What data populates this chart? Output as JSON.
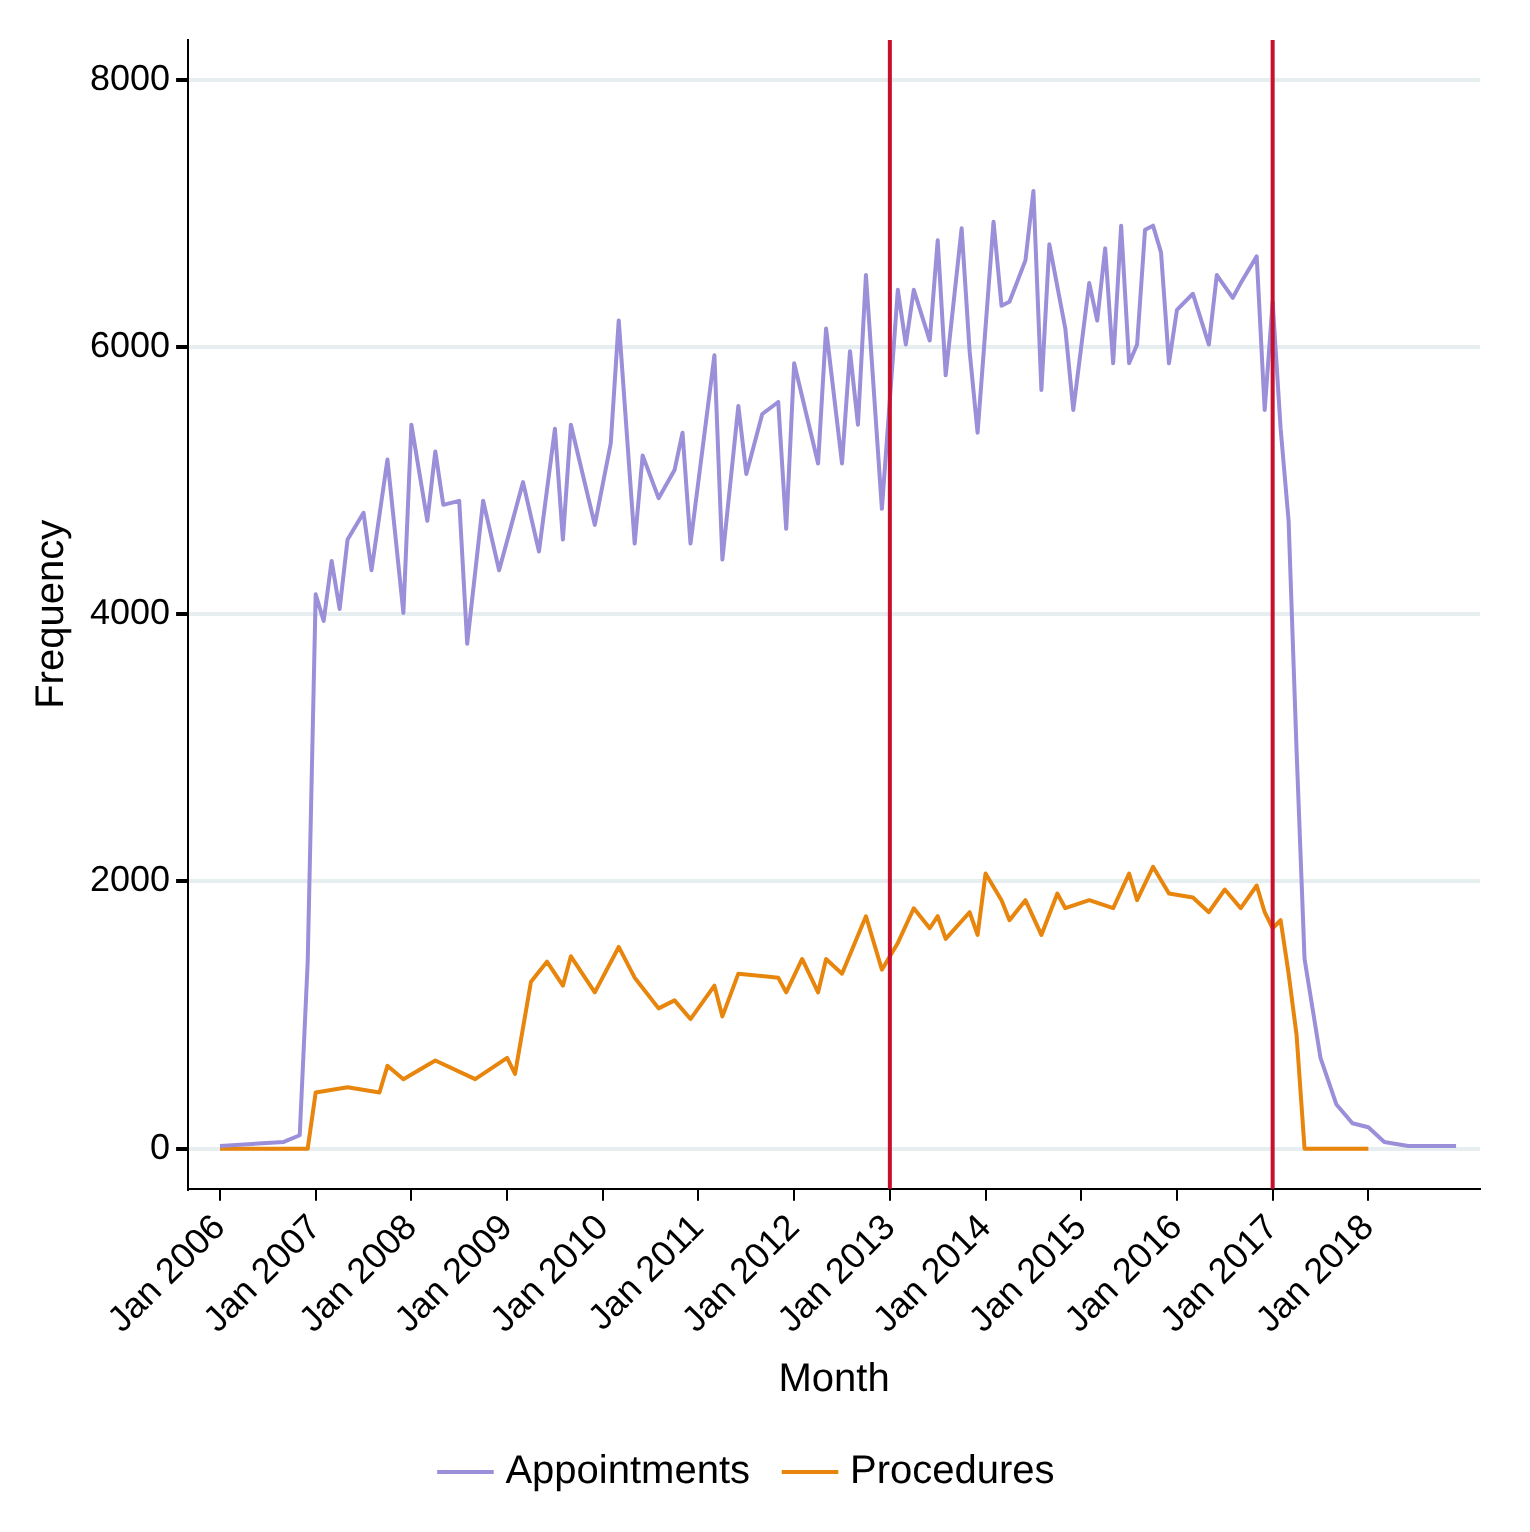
{
  "chart_data": {
    "type": "line",
    "xlabel": "Month",
    "ylabel": "Frequency",
    "xlim": [
      "2005-09",
      "2019-03"
    ],
    "ylim": [
      -300,
      8300
    ],
    "xticks": [
      {
        "value": "2006-01",
        "label": "Jan 2006"
      },
      {
        "value": "2007-01",
        "label": "Jan 2007"
      },
      {
        "value": "2008-01",
        "label": "Jan 2008"
      },
      {
        "value": "2009-01",
        "label": "Jan 2009"
      },
      {
        "value": "2010-01",
        "label": "Jan 2010"
      },
      {
        "value": "2011-01",
        "label": "Jan 2011"
      },
      {
        "value": "2012-01",
        "label": "Jan 2012"
      },
      {
        "value": "2013-01",
        "label": "Jan 2013"
      },
      {
        "value": "2014-01",
        "label": "Jan 2014"
      },
      {
        "value": "2015-01",
        "label": "Jan 2015"
      },
      {
        "value": "2016-01",
        "label": "Jan 2016"
      },
      {
        "value": "2017-01",
        "label": "Jan 2017"
      },
      {
        "value": "2018-01",
        "label": "Jan 2018"
      }
    ],
    "yticks": [
      0,
      2000,
      4000,
      6000,
      8000
    ],
    "grid": "y",
    "legend": "bottom",
    "marker": "none",
    "line_style": "solid",
    "ref_lines": [
      {
        "axis": "x",
        "value": "2013-01",
        "color": "#c8102e"
      },
      {
        "axis": "x",
        "value": "2017-01",
        "color": "#c8102e"
      }
    ],
    "series": [
      {
        "name": "Appointments",
        "color": "#9a8fd8",
        "x": [
          "2006-01",
          "2006-09",
          "2006-11",
          "2006-12",
          "2007-01",
          "2007-02",
          "2007-03",
          "2007-04",
          "2007-05",
          "2007-07",
          "2007-08",
          "2007-10",
          "2007-12",
          "2008-01",
          "2008-03",
          "2008-04",
          "2008-05",
          "2008-07",
          "2008-08",
          "2008-10",
          "2008-12",
          "2009-03",
          "2009-05",
          "2009-07",
          "2009-08",
          "2009-09",
          "2009-12",
          "2010-02",
          "2010-03",
          "2010-05",
          "2010-06",
          "2010-08",
          "2010-10",
          "2010-11",
          "2010-12",
          "2011-03",
          "2011-04",
          "2011-06",
          "2011-07",
          "2011-09",
          "2011-11",
          "2011-12",
          "2012-01",
          "2012-04",
          "2012-05",
          "2012-07",
          "2012-08",
          "2012-09",
          "2012-10",
          "2012-12",
          "2013-02",
          "2013-03",
          "2013-04",
          "2013-06",
          "2013-07",
          "2013-08",
          "2013-10",
          "2013-11",
          "2013-12",
          "2014-02",
          "2014-03",
          "2014-04",
          "2014-06",
          "2014-07",
          "2014-08",
          "2014-09",
          "2014-11",
          "2014-12",
          "2015-02",
          "2015-03",
          "2015-04",
          "2015-05",
          "2015-06",
          "2015-07",
          "2015-08",
          "2015-09",
          "2015-10",
          "2015-11",
          "2015-12",
          "2016-01",
          "2016-03",
          "2016-05",
          "2016-06",
          "2016-08",
          "2016-09",
          "2016-11",
          "2016-12",
          "2017-01",
          "2017-02",
          "2017-03",
          "2017-04",
          "2017-05",
          "2017-07",
          "2017-09",
          "2017-11",
          "2018-01",
          "2018-03",
          "2018-06",
          "2018-12"
        ],
        "values": [
          20,
          50,
          100,
          1400,
          4150,
          3950,
          4400,
          4040,
          4560,
          4760,
          4330,
          5160,
          4010,
          5420,
          4700,
          5220,
          4820,
          4850,
          3780,
          4850,
          4330,
          4990,
          4470,
          5390,
          4560,
          5420,
          4670,
          5280,
          6200,
          4530,
          5190,
          4870,
          5080,
          5360,
          4530,
          5940,
          4410,
          5560,
          5050,
          5500,
          5590,
          4640,
          5880,
          5130,
          6140,
          5130,
          5970,
          5420,
          6540,
          4790,
          6430,
          6020,
          6430,
          6050,
          6800,
          5790,
          6890,
          5970,
          5360,
          6940,
          6310,
          6340,
          6650,
          7170,
          5680,
          6770,
          6140,
          5530,
          6480,
          6200,
          6740,
          5880,
          6910,
          5880,
          6020,
          6880,
          6910,
          6710,
          5880,
          6280,
          6400,
          6020,
          6540,
          6370,
          6480,
          6680,
          5530,
          6340,
          5390,
          4700,
          2980,
          1420,
          680,
          330,
          190,
          160,
          50,
          20,
          20
        ]
      },
      {
        "name": "Procedures",
        "color": "#e8850c",
        "x": [
          "2006-01",
          "2006-12",
          "2007-01",
          "2007-05",
          "2007-09",
          "2007-10",
          "2007-12",
          "2008-04",
          "2008-09",
          "2009-01",
          "2009-02",
          "2009-04",
          "2009-06",
          "2009-08",
          "2009-09",
          "2009-12",
          "2010-03",
          "2010-05",
          "2010-08",
          "2010-10",
          "2010-12",
          "2011-03",
          "2011-04",
          "2011-06",
          "2011-11",
          "2011-12",
          "2012-02",
          "2012-04",
          "2012-05",
          "2012-07",
          "2012-10",
          "2012-12",
          "2013-02",
          "2013-04",
          "2013-06",
          "2013-07",
          "2013-08",
          "2013-11",
          "2013-12",
          "2014-01",
          "2014-03",
          "2014-04",
          "2014-06",
          "2014-08",
          "2014-10",
          "2014-11",
          "2015-02",
          "2015-05",
          "2015-07",
          "2015-08",
          "2015-10",
          "2015-12",
          "2016-03",
          "2016-05",
          "2016-07",
          "2016-09",
          "2016-11",
          "2016-12",
          "2017-01",
          "2017-02",
          "2017-03",
          "2017-04",
          "2017-05",
          "2018-01"
        ],
        "values": [
          0,
          0,
          420,
          460,
          420,
          620,
          520,
          660,
          520,
          680,
          560,
          1250,
          1400,
          1220,
          1440,
          1170,
          1510,
          1280,
          1050,
          1110,
          970,
          1220,
          990,
          1310,
          1280,
          1170,
          1420,
          1170,
          1420,
          1310,
          1740,
          1340,
          1540,
          1800,
          1650,
          1740,
          1570,
          1770,
          1600,
          2060,
          1860,
          1710,
          1860,
          1600,
          1910,
          1800,
          1860,
          1800,
          2060,
          1860,
          2110,
          1910,
          1880,
          1770,
          1940,
          1800,
          1970,
          1770,
          1650,
          1710,
          1310,
          850,
          0,
          0
        ]
      }
    ]
  }
}
